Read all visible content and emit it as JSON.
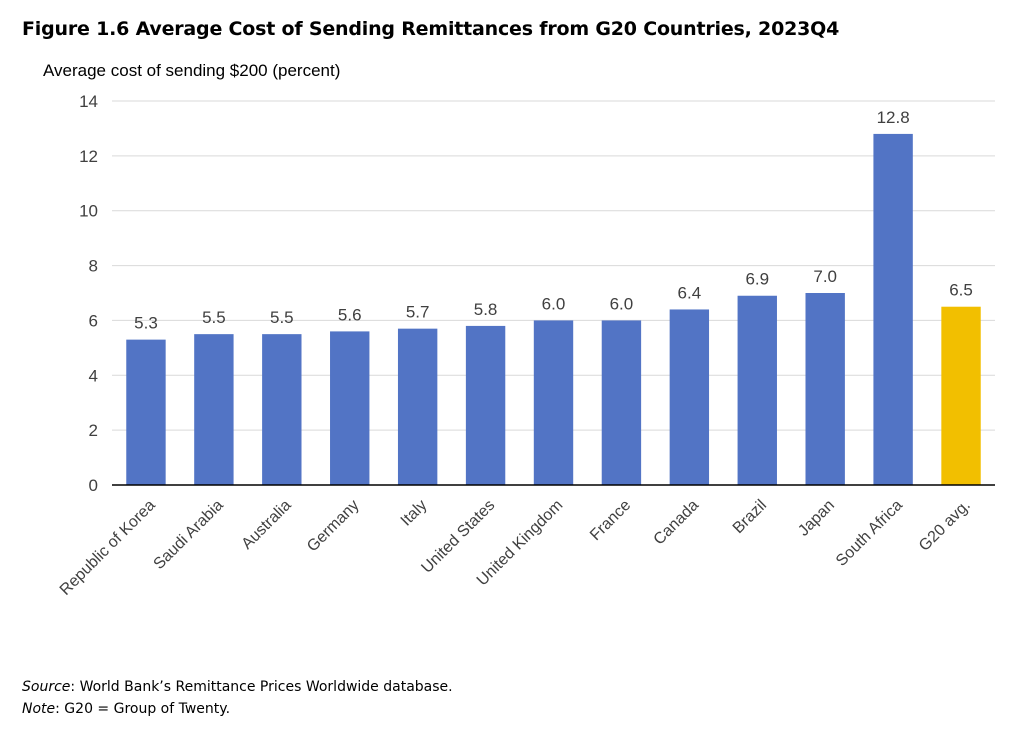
{
  "figure": {
    "title": "Figure 1.6 Average Cost of Sending Remittances from G20 Countries, 2023Q4",
    "source_label": "Source",
    "source_text": ": World Bank’s Remittance Prices Worldwide database.",
    "note_label": "Note",
    "note_text": ": G20 = Group of Twenty."
  },
  "chart_data": {
    "type": "bar",
    "ylabel": "Average cost of sending $200 (percent)",
    "xlabel": "",
    "ylim": [
      0,
      14
    ],
    "yticks": [
      0,
      2,
      4,
      6,
      8,
      10,
      12,
      14
    ],
    "grid": true,
    "legend": "none",
    "categories": [
      "Republic of Korea",
      "Saudi Arabia",
      "Australia",
      "Germany",
      "Italy",
      "United States",
      "United Kingdom",
      "France",
      "Canada",
      "Brazil",
      "Japan",
      "South Africa",
      "G20 avg."
    ],
    "values": [
      5.3,
      5.5,
      5.5,
      5.6,
      5.7,
      5.8,
      6.0,
      6.0,
      6.4,
      6.9,
      7.0,
      12.8,
      6.5
    ],
    "value_labels": [
      "5.3",
      "5.5",
      "5.5",
      "5.6",
      "5.7",
      "5.8",
      "6.0",
      "6.0",
      "6.4",
      "6.9",
      "7.0",
      "12.8",
      "6.5"
    ],
    "colors": {
      "bar": "#5274C5",
      "highlight": "#F2BF00",
      "grid": "#D9D9D9",
      "axis": "#000000",
      "text": "#404040"
    },
    "highlight_category": "G20 avg."
  }
}
